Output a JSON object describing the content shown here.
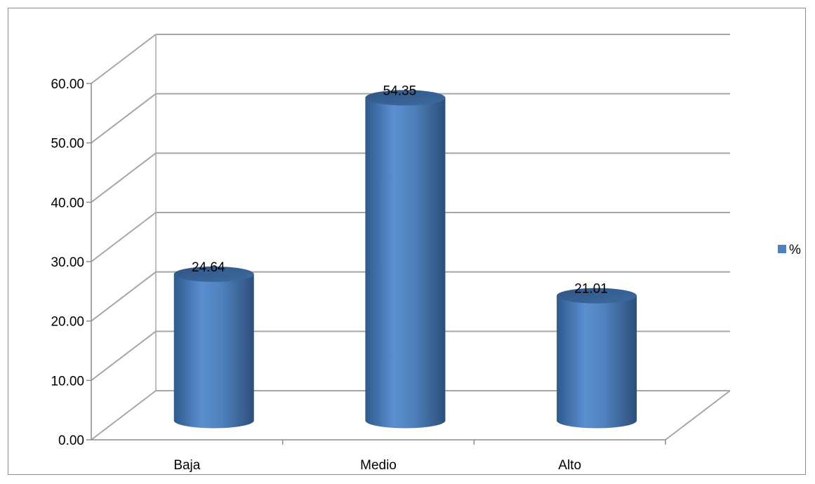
{
  "chart_data": {
    "type": "bar",
    "style": "3d-cylinder",
    "categories": [
      "Baja",
      "Medio",
      "Alto"
    ],
    "series": [
      {
        "name": "%",
        "values": [
          24.64,
          54.35,
          21.01
        ],
        "color": "#4f81bd"
      }
    ],
    "data_labels": [
      "24.64",
      "54.35",
      "21.01"
    ],
    "y_ticks": [
      "0.00",
      "10.00",
      "20.00",
      "30.00",
      "40.00",
      "50.00",
      "60.00"
    ],
    "ylim": [
      0,
      60
    ],
    "title": "",
    "xlabel": "",
    "ylabel": "",
    "grid": true,
    "legend_position": "right",
    "colors": {
      "bar": "#4f81bd",
      "grid": "#a6a6a6",
      "axis": "#8c8c8c"
    }
  }
}
